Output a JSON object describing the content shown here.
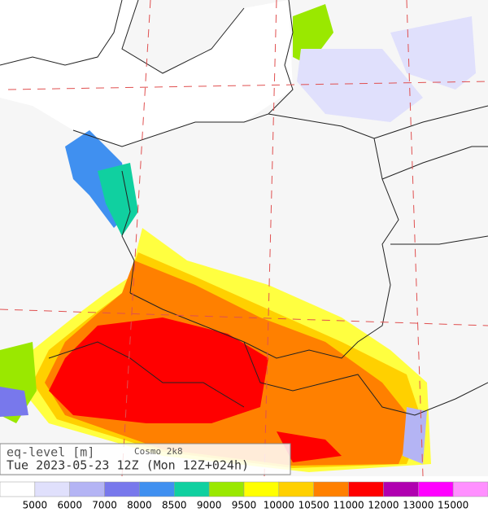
{
  "header": {
    "variable": "eq-level [m]",
    "model": "Cosmo 2k8",
    "valid_time": "Tue 2023-05-23 12Z (Mon 12Z+024h)"
  },
  "colorbar": {
    "levels": [
      5000,
      6000,
      7000,
      8000,
      8500,
      9000,
      9500,
      10000,
      10500,
      11000,
      12000,
      13000,
      15000
    ],
    "colors": [
      "#ffffff",
      "#e0e0fc",
      "#b4b4f4",
      "#7878ec",
      "#4090f0",
      "#10d0a0",
      "#9ae800",
      "#ffff00",
      "#ffd000",
      "#ff8000",
      "#ff0000",
      "#b000b0",
      "#ff00ff",
      "#ff90ff"
    ]
  }
}
